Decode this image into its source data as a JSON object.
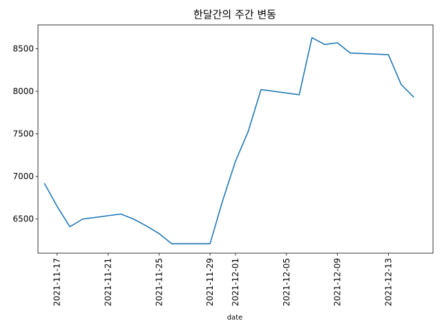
{
  "chart_data": {
    "type": "line",
    "title": "한달간의 주간 변동",
    "xlabel": "date",
    "ylabel": "",
    "x_type": "date",
    "xlim": [
      "2021-11-15T12:00",
      "2021-12-16T12:00"
    ],
    "ylim": [
      6100,
      8780
    ],
    "x_ticks": [
      "2021-11-17",
      "2021-11-21",
      "2021-11-25",
      "2021-11-29",
      "2021-12-01",
      "2021-12-05",
      "2021-12-09",
      "2021-12-13"
    ],
    "y_ticks": [
      6500,
      7000,
      7500,
      8000,
      8500
    ],
    "grid": false,
    "line_color": "#1f77b4",
    "series": [
      {
        "x": [
          "2021-11-16",
          "2021-11-17",
          "2021-11-18",
          "2021-11-19",
          "2021-11-22",
          "2021-11-23",
          "2021-11-24",
          "2021-11-25",
          "2021-11-26",
          "2021-11-29",
          "2021-11-30",
          "2021-12-01",
          "2021-12-02",
          "2021-12-03",
          "2021-12-06",
          "2021-12-07",
          "2021-12-08",
          "2021-12-09",
          "2021-12-10",
          "2021-12-13",
          "2021-12-14",
          "2021-12-15"
        ],
        "values": [
          6920,
          6650,
          6410,
          6500,
          6560,
          6500,
          6420,
          6330,
          6210,
          6210,
          6720,
          7180,
          7530,
          8020,
          7960,
          8630,
          8550,
          8570,
          8450,
          8430,
          8080,
          7930
        ]
      }
    ]
  }
}
